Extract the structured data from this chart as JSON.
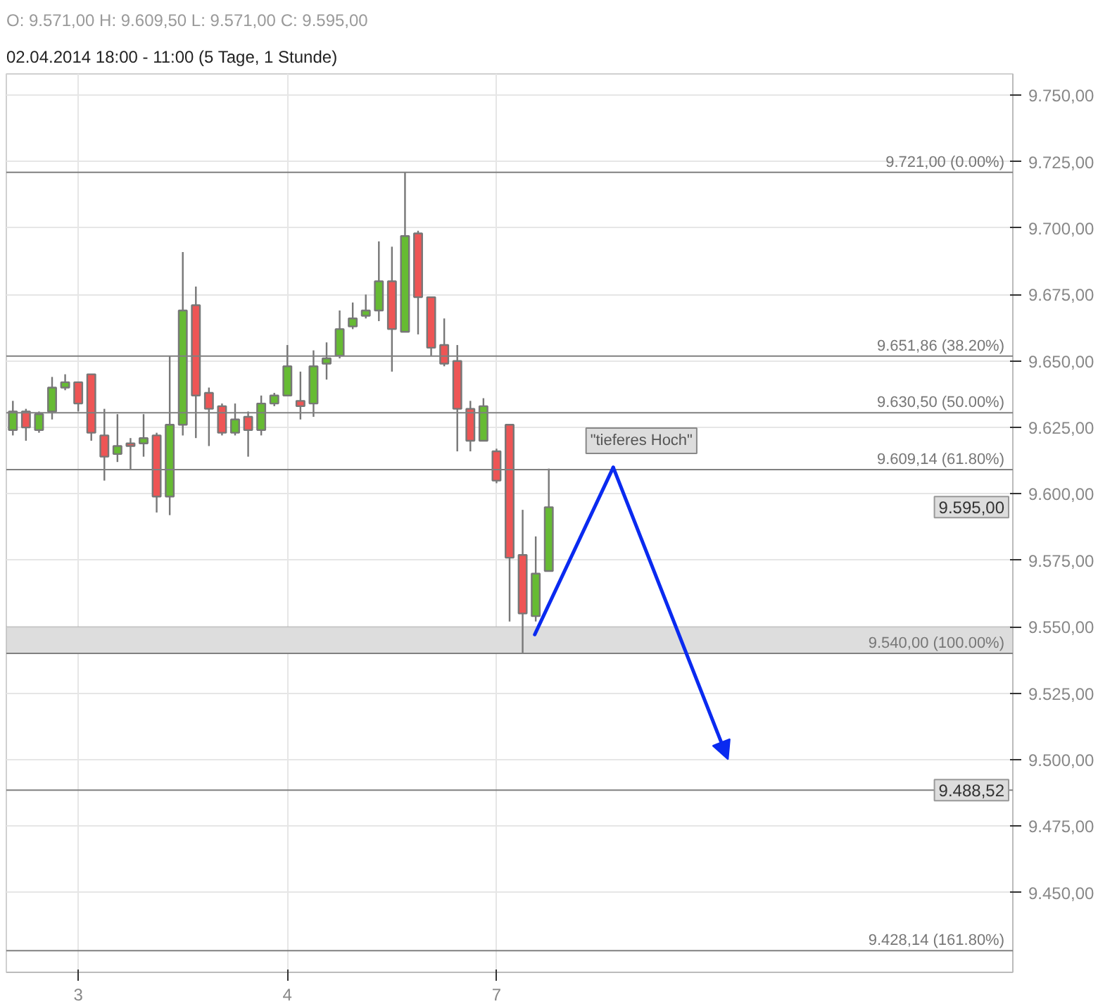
{
  "chart_data": {
    "type": "candlestick",
    "title": "O: 9.571,00  H: 9.609,50  L: 9.571,00  C: 9.595,00",
    "subtitle": "02.04.2014 18:00 - 11:00 (5 Tage, 1 Stunde)",
    "categories": [
      null,
      null,
      null,
      null,
      null,
      "3",
      null,
      null,
      null,
      null,
      null,
      null,
      null,
      null,
      null,
      null,
      null,
      null,
      null,
      null,
      null,
      "4",
      null,
      null,
      null,
      null,
      null,
      null,
      null,
      null,
      null,
      null,
      null,
      null,
      null,
      null,
      null,
      "7",
      null,
      null,
      null,
      null,
      null,
      null,
      null,
      null,
      null,
      null,
      null,
      null,
      null,
      null,
      null,
      null,
      null,
      null,
      null,
      null,
      null,
      null,
      null,
      null,
      null,
      null,
      null,
      null,
      null,
      null,
      null,
      null,
      null,
      null,
      null,
      null,
      null,
      null,
      null
    ],
    "ohlc": [
      [
        9624,
        9635,
        9622,
        9631
      ],
      [
        9631,
        9632,
        9620,
        9625
      ],
      [
        9624,
        9631,
        9623,
        9630
      ],
      [
        9631,
        9644,
        9628,
        9640
      ],
      [
        9640,
        9645,
        9639,
        9642
      ],
      [
        9642,
        9642,
        9631,
        9634
      ],
      [
        9645,
        9645,
        9620,
        9623
      ],
      [
        9622,
        9632,
        9605,
        9614
      ],
      [
        9615,
        9630,
        9612,
        9618
      ],
      [
        9619,
        9621,
        9609,
        9618
      ],
      [
        9619,
        9630,
        9614,
        9621
      ],
      [
        9622,
        9623,
        9593,
        9599
      ],
      [
        9599,
        9652,
        9592,
        9626
      ],
      [
        9626,
        9691,
        9622,
        9669
      ],
      [
        9671,
        9678,
        9621,
        9637
      ],
      [
        9638,
        9640,
        9618,
        9632
      ],
      [
        9633,
        9634,
        9622,
        9623
      ],
      [
        9623,
        9634,
        9622,
        9628
      ],
      [
        9629,
        9631,
        9614,
        9624
      ],
      [
        9624,
        9637,
        9622,
        9634
      ],
      [
        9634,
        9638,
        9633,
        9637
      ],
      [
        9637,
        9656,
        9637,
        9648
      ],
      [
        9635,
        9646,
        9628,
        9633
      ],
      [
        9634,
        9654,
        9629,
        9648
      ],
      [
        9649,
        9657,
        9643,
        9651
      ],
      [
        9652,
        9669,
        9651,
        9662
      ],
      [
        9663,
        9672,
        9662,
        9666
      ],
      [
        9667,
        9675,
        9666,
        9669
      ],
      [
        9669,
        9695,
        9665,
        9680
      ],
      [
        9680,
        9693,
        9646,
        9662
      ],
      [
        9661,
        9721,
        9661,
        9697
      ],
      [
        9698,
        9699,
        9660,
        9674
      ],
      [
        9674,
        9674,
        9652,
        9655
      ],
      [
        9656,
        9666,
        9648,
        9649
      ],
      [
        9650,
        9656,
        9616,
        9632
      ],
      [
        9632,
        9635,
        9616,
        9620
      ],
      [
        9620,
        9636,
        9620,
        9633
      ],
      [
        9616,
        9617,
        9604,
        9605
      ],
      [
        9626,
        9626,
        9552,
        9576
      ],
      [
        9577,
        9594,
        9540,
        9555
      ],
      [
        9554,
        9584,
        9552,
        9570
      ],
      [
        9571,
        9609.5,
        9571,
        9595
      ],
      null,
      null,
      null,
      null,
      null,
      null,
      null,
      null,
      null,
      null,
      null,
      null,
      null,
      null,
      null,
      null,
      null,
      null,
      null,
      null,
      null,
      null,
      null,
      null,
      null,
      null,
      null,
      null,
      null,
      null,
      null,
      null,
      null,
      null,
      null
    ],
    "colors": [
      "#66bb33",
      "#ee5555",
      "#66bb33",
      "#66bb33",
      "#66bb33",
      "#ee5555",
      "#ee5555",
      "#ee5555",
      "#66bb33",
      "#ee5555",
      "#66bb33",
      "#ee5555",
      "#66bb33",
      "#66bb33",
      "#ee5555",
      "#ee5555",
      "#ee5555",
      "#66bb33",
      "#ee5555",
      "#66bb33",
      "#66bb33",
      "#66bb33",
      "#ee5555",
      "#66bb33",
      "#66bb33",
      "#66bb33",
      "#66bb33",
      "#66bb33",
      "#66bb33",
      "#ee5555",
      "#66bb33",
      "#ee5555",
      "#ee5555",
      "#ee5555",
      "#ee5555",
      "#ee5555",
      "#66bb33",
      "#ee5555",
      "#ee5555",
      "#ee5555",
      "#66bb33",
      "#66bb33",
      null,
      null,
      null,
      null,
      null,
      null,
      null,
      null,
      null,
      null,
      null,
      null,
      null,
      null,
      null,
      null,
      null,
      null,
      null,
      null,
      null,
      null,
      null,
      null,
      null,
      null,
      null,
      null,
      null,
      null,
      null,
      null,
      null,
      null,
      null
    ],
    "ylim": [
      9420,
      9758
    ],
    "yticks": [
      {
        "value": 9450,
        "label": "9.450,00"
      },
      {
        "value": 9475,
        "label": "9.475,00"
      },
      {
        "value": 9500,
        "label": "9.500,00"
      },
      {
        "value": 9525,
        "label": "9.525,00"
      },
      {
        "value": 9550,
        "label": "9.550,00"
      },
      {
        "value": 9575,
        "label": "9.575,00"
      },
      {
        "value": 9600,
        "label": "9.600,00"
      },
      {
        "value": 9625,
        "label": "9.625,00"
      },
      {
        "value": 9650,
        "label": "9.650,00"
      },
      {
        "value": 9675,
        "label": "9.675,00"
      },
      {
        "value": 9700,
        "label": "9.700,00"
      },
      {
        "value": 9725,
        "label": "9.725,00"
      },
      {
        "value": 9750,
        "label": "9.750,00"
      }
    ],
    "grid": true,
    "ref_lines": [
      {
        "axis": "y",
        "value": 9721,
        "label": "9.721,00 (0.00%)",
        "color": "#808080"
      },
      {
        "axis": "y",
        "value": 9651.86,
        "label": "9.651,86 (38.20%)",
        "color": "#808080"
      },
      {
        "axis": "y",
        "value": 9630.5,
        "label": "9.630,50 (50.00%)",
        "color": "#808080"
      },
      {
        "axis": "y",
        "value": 9609.14,
        "label": "9.609,14 (61.80%)",
        "color": "#808080"
      },
      {
        "axis": "y",
        "value": 9540,
        "label": "9.540,00 (100.00%)",
        "color": "#808080"
      },
      {
        "axis": "y",
        "value": 9428.14,
        "label": "9.428,14 (161.80%)",
        "color": "#808080"
      },
      {
        "axis": "y",
        "value": 9488.52,
        "color": "#808080"
      }
    ],
    "bands": [
      {
        "axis": "y",
        "from": 9540,
        "to": 9550,
        "color": "#dddddd"
      }
    ],
    "annotations": [
      "\"tieferes Hoch\"",
      "9.595,00",
      {
        "text": "9.488,52",
        "y": 9488.52
      }
    ]
  }
}
